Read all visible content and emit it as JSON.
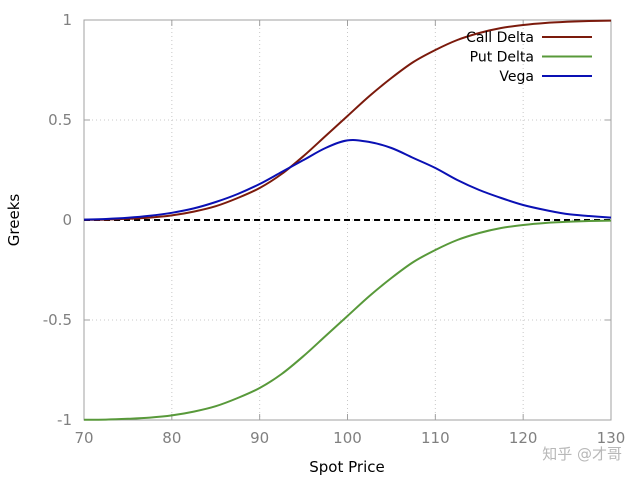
{
  "chart_data": {
    "type": "line",
    "title": "",
    "xlabel": "Spot Price",
    "ylabel": "Greeks",
    "xlim": [
      70,
      130
    ],
    "ylim": [
      -1,
      1
    ],
    "xticks": [
      "70",
      "80",
      "90",
      "100",
      "110",
      "120",
      "130"
    ],
    "yticks": [
      "-1",
      "-0.5",
      "0",
      "0.5",
      "1"
    ],
    "grid": true,
    "legend_position": "top-right",
    "watermark": "知乎 @才哥",
    "reference_line": {
      "y": 0,
      "style": "dashed",
      "color": "#000000"
    },
    "x": [
      70,
      72.5,
      75,
      77.5,
      80,
      82.5,
      85,
      87.5,
      90,
      92.5,
      95,
      97.5,
      100,
      102.5,
      105,
      107.5,
      110,
      112.5,
      115,
      117.5,
      120,
      122.5,
      125,
      127.5,
      130
    ],
    "series": [
      {
        "name": "Call Delta",
        "color": "#7b1a0c",
        "values": [
          0.001,
          0.002,
          0.006,
          0.012,
          0.023,
          0.042,
          0.069,
          0.11,
          0.16,
          0.23,
          0.32,
          0.42,
          0.52,
          0.62,
          0.71,
          0.79,
          0.85,
          0.9,
          0.935,
          0.96,
          0.975,
          0.985,
          0.991,
          0.995,
          0.997
        ]
      },
      {
        "name": "Put Delta",
        "color": "#58993a",
        "values": [
          -0.999,
          -0.998,
          -0.994,
          -0.988,
          -0.977,
          -0.958,
          -0.931,
          -0.89,
          -0.84,
          -0.77,
          -0.68,
          -0.58,
          -0.48,
          -0.38,
          -0.29,
          -0.21,
          -0.15,
          -0.1,
          -0.065,
          -0.04,
          -0.025,
          -0.015,
          -0.009,
          -0.005,
          -0.003
        ]
      },
      {
        "name": "Vega",
        "color": "#0a10b4",
        "values": [
          0.002,
          0.005,
          0.011,
          0.021,
          0.036,
          0.058,
          0.09,
          0.13,
          0.18,
          0.24,
          0.3,
          0.36,
          0.398,
          0.39,
          0.36,
          0.31,
          0.26,
          0.2,
          0.15,
          0.11,
          0.075,
          0.05,
          0.03,
          0.02,
          0.012
        ]
      }
    ]
  }
}
